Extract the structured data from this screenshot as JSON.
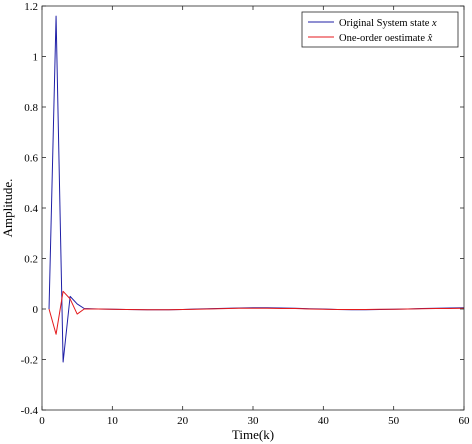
{
  "chart_data": {
    "type": "line",
    "xlabel": "Time(k)",
    "ylabel": "Amplitude.",
    "xlim": [
      0,
      60
    ],
    "ylim": [
      -0.4,
      1.2
    ],
    "xticks": [
      0,
      10,
      20,
      30,
      40,
      50,
      60
    ],
    "yticks": [
      -0.4,
      -0.2,
      0,
      0.2,
      0.4,
      0.6,
      0.8,
      1,
      1.2
    ],
    "xtick_labels": [
      "0",
      "10",
      "20",
      "30",
      "40",
      "50",
      "60"
    ],
    "ytick_labels": [
      "-0.4",
      "-0.2",
      "0",
      "0.2",
      "0.4",
      "0.6",
      "0.8",
      "1",
      "1.2"
    ],
    "grid": false,
    "legend_position": "top-right",
    "series": [
      {
        "name": "Original System state x",
        "label_plain": "Original System state ",
        "label_math": "x",
        "color": "#1f1fa6",
        "x": [
          1,
          2,
          3,
          4,
          5,
          6,
          8,
          10,
          12,
          15,
          18,
          20,
          22,
          25,
          28,
          30,
          32,
          34,
          36,
          38,
          40,
          42,
          44,
          46,
          48,
          50,
          52,
          54,
          56,
          58,
          60
        ],
        "y": [
          0.0,
          1.16,
          -0.21,
          0.05,
          0.02,
          0.002,
          0.0,
          -0.001,
          -0.002,
          -0.003,
          -0.003,
          -0.002,
          0.0,
          0.002,
          0.004,
          0.005,
          0.005,
          0.004,
          0.003,
          0.001,
          0.0,
          -0.002,
          -0.003,
          -0.003,
          -0.002,
          -0.001,
          0.0,
          0.002,
          0.003,
          0.004,
          0.005
        ]
      },
      {
        "name": "One-order oestimate x̂",
        "label_plain": "One-order oestimate ",
        "label_math": "x̂",
        "color": "#e41a1c",
        "x": [
          1,
          2,
          3,
          4,
          5,
          6,
          8,
          10,
          12,
          15,
          18,
          20,
          22,
          25,
          28,
          30,
          32,
          34,
          36,
          38,
          40,
          42,
          44,
          46,
          48,
          50,
          52,
          54,
          56,
          58,
          60
        ],
        "y": [
          0.0,
          -0.1,
          0.07,
          0.04,
          -0.02,
          0.0,
          0.0,
          -0.001,
          -0.002,
          -0.003,
          -0.003,
          -0.002,
          -0.001,
          0.001,
          0.003,
          0.003,
          0.003,
          0.002,
          0.002,
          0.0,
          -0.001,
          -0.002,
          -0.002,
          -0.002,
          -0.001,
          -0.001,
          0.0,
          0.001,
          0.002,
          0.002,
          0.003
        ]
      }
    ]
  }
}
